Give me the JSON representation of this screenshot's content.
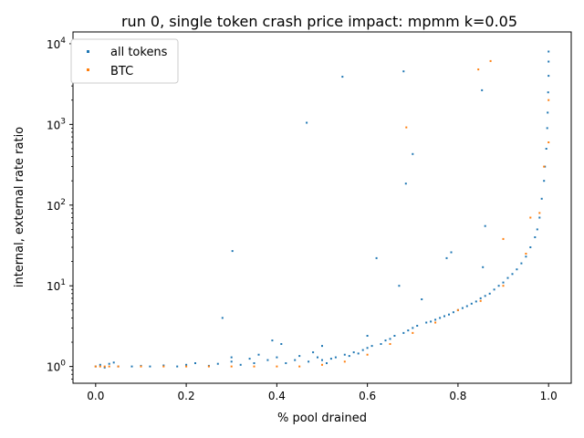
{
  "colors": {
    "all_tokens": "#1f77b4",
    "btc": "#ff7f0e",
    "axes": "#000000",
    "background": "#ffffff"
  },
  "chart_data": {
    "type": "scatter",
    "title": "run 0, single token crash price impact: mpmm k=0.05",
    "xlabel": "% pool drained",
    "ylabel": "internal, external rate ratio",
    "xlim": [
      -0.05,
      1.05
    ],
    "ylim": [
      0.62,
      14000
    ],
    "yscale": "log",
    "grid": false,
    "legend_position": "top-left",
    "x_ticks": [
      {
        "value": 0.0,
        "label": "0.0"
      },
      {
        "value": 0.2,
        "label": "0.2"
      },
      {
        "value": 0.4,
        "label": "0.4"
      },
      {
        "value": 0.6,
        "label": "0.6"
      },
      {
        "value": 0.8,
        "label": "0.8"
      },
      {
        "value": 1.0,
        "label": "1.0"
      }
    ],
    "y_ticks": [
      {
        "value": 1,
        "base": "10",
        "exp": "0"
      },
      {
        "value": 10,
        "base": "10",
        "exp": "1"
      },
      {
        "value": 100,
        "base": "10",
        "exp": "2"
      },
      {
        "value": 1000,
        "base": "10",
        "exp": "3"
      },
      {
        "value": 10000,
        "base": "10",
        "exp": "4"
      }
    ],
    "series": [
      {
        "name": "all tokens",
        "color": "#1f77b4",
        "points": [
          [
            0.0,
            1.0
          ],
          [
            0.01,
            1.05
          ],
          [
            0.02,
            0.97
          ],
          [
            0.03,
            1.08
          ],
          [
            0.04,
            1.12
          ],
          [
            0.05,
            1.0
          ],
          [
            0.08,
            1.0
          ],
          [
            0.1,
            1.02
          ],
          [
            0.12,
            1.0
          ],
          [
            0.15,
            1.03
          ],
          [
            0.18,
            1.0
          ],
          [
            0.2,
            1.05
          ],
          [
            0.22,
            1.1
          ],
          [
            0.25,
            1.02
          ],
          [
            0.27,
            1.08
          ],
          [
            0.28,
            4.0
          ],
          [
            0.3,
            1.15
          ],
          [
            0.3,
            1.3
          ],
          [
            0.302,
            27
          ],
          [
            0.32,
            1.05
          ],
          [
            0.34,
            1.25
          ],
          [
            0.35,
            1.1
          ],
          [
            0.36,
            1.4
          ],
          [
            0.38,
            1.2
          ],
          [
            0.39,
            2.1
          ],
          [
            0.4,
            1.3
          ],
          [
            0.41,
            1.9
          ],
          [
            0.42,
            1.1
          ],
          [
            0.44,
            1.2
          ],
          [
            0.45,
            1.35
          ],
          [
            0.466,
            1050
          ],
          [
            0.47,
            1.15
          ],
          [
            0.48,
            1.5
          ],
          [
            0.49,
            1.3
          ],
          [
            0.5,
            1.2
          ],
          [
            0.5,
            1.8
          ],
          [
            0.51,
            1.1
          ],
          [
            0.52,
            1.25
          ],
          [
            0.53,
            1.3
          ],
          [
            0.545,
            3900
          ],
          [
            0.55,
            1.4
          ],
          [
            0.56,
            1.35
          ],
          [
            0.57,
            1.5
          ],
          [
            0.58,
            1.45
          ],
          [
            0.59,
            1.6
          ],
          [
            0.6,
            1.7
          ],
          [
            0.6,
            2.4
          ],
          [
            0.61,
            1.8
          ],
          [
            0.62,
            22
          ],
          [
            0.63,
            1.9
          ],
          [
            0.64,
            2.1
          ],
          [
            0.65,
            2.2
          ],
          [
            0.66,
            2.4
          ],
          [
            0.67,
            10
          ],
          [
            0.68,
            2.6
          ],
          [
            0.68,
            4550
          ],
          [
            0.685,
            185
          ],
          [
            0.69,
            2.8
          ],
          [
            0.7,
            3.0
          ],
          [
            0.7,
            430
          ],
          [
            0.71,
            3.2
          ],
          [
            0.72,
            6.8
          ],
          [
            0.73,
            3.5
          ],
          [
            0.74,
            3.6
          ],
          [
            0.75,
            3.8
          ],
          [
            0.76,
            4.0
          ],
          [
            0.77,
            4.2
          ],
          [
            0.775,
            22
          ],
          [
            0.78,
            4.4
          ],
          [
            0.785,
            26
          ],
          [
            0.79,
            4.7
          ],
          [
            0.8,
            5.0
          ],
          [
            0.81,
            5.3
          ],
          [
            0.82,
            5.6
          ],
          [
            0.83,
            6.0
          ],
          [
            0.84,
            6.4
          ],
          [
            0.85,
            7.0
          ],
          [
            0.853,
            2650
          ],
          [
            0.855,
            17
          ],
          [
            0.86,
            55
          ],
          [
            0.86,
            7.5
          ],
          [
            0.87,
            8.0
          ],
          [
            0.88,
            9.0
          ],
          [
            0.89,
            10.0
          ],
          [
            0.9,
            11.0
          ],
          [
            0.91,
            12.5
          ],
          [
            0.92,
            14.0
          ],
          [
            0.93,
            16.0
          ],
          [
            0.94,
            19.0
          ],
          [
            0.95,
            23.0
          ],
          [
            0.96,
            30.0
          ],
          [
            0.97,
            40.0
          ],
          [
            0.975,
            50
          ],
          [
            0.98,
            70
          ],
          [
            0.985,
            120
          ],
          [
            0.99,
            200
          ],
          [
            0.992,
            300
          ],
          [
            0.995,
            500
          ],
          [
            0.997,
            900
          ],
          [
            0.998,
            1400
          ],
          [
            0.999,
            2500
          ],
          [
            1.0,
            4000
          ],
          [
            1.0,
            6000
          ],
          [
            1.0,
            8000
          ]
        ]
      },
      {
        "name": "BTC",
        "color": "#ff7f0e",
        "points": [
          [
            0.0,
            1.0
          ],
          [
            0.01,
            1.0
          ],
          [
            0.02,
            1.0
          ],
          [
            0.03,
            1.0
          ],
          [
            0.05,
            1.0
          ],
          [
            0.1,
            1.0
          ],
          [
            0.15,
            1.0
          ],
          [
            0.2,
            1.0
          ],
          [
            0.25,
            1.0
          ],
          [
            0.3,
            1.0
          ],
          [
            0.35,
            1.0
          ],
          [
            0.4,
            1.0
          ],
          [
            0.45,
            1.0
          ],
          [
            0.5,
            1.05
          ],
          [
            0.55,
            1.15
          ],
          [
            0.6,
            1.4
          ],
          [
            0.65,
            1.9
          ],
          [
            0.686,
            920
          ],
          [
            0.7,
            2.6
          ],
          [
            0.75,
            3.5
          ],
          [
            0.8,
            5.0
          ],
          [
            0.845,
            4800
          ],
          [
            0.85,
            6.5
          ],
          [
            0.872,
            6100
          ],
          [
            0.9,
            10.0
          ],
          [
            0.9,
            38
          ],
          [
            0.95,
            25.0
          ],
          [
            0.96,
            70
          ],
          [
            0.98,
            80
          ],
          [
            0.99,
            300
          ],
          [
            1.0,
            600
          ],
          [
            1.0,
            2000
          ]
        ]
      }
    ]
  }
}
